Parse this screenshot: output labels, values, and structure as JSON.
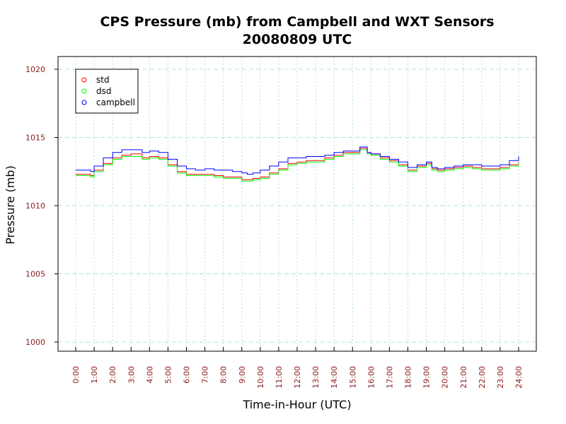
{
  "chart_data": {
    "type": "line",
    "title": "CPS Pressure (mb) from Campbell and WXT Sensors",
    "subtitle": "20080809  UTC",
    "xlabel": "Time-in-Hour (UTC)",
    "ylabel": "Pressure (mb)",
    "xlim": [
      0,
      24
    ],
    "ylim": [
      1000,
      1020
    ],
    "x_ticks": [
      "0:00",
      "1:00",
      "2:00",
      "3:00",
      "4:00",
      "5:00",
      "6:00",
      "7:00",
      "8:00",
      "9:00",
      "10:00",
      "11:00",
      "12:00",
      "13:00",
      "14:00",
      "15:00",
      "16:00",
      "17:00",
      "18:00",
      "19:00",
      "20:00",
      "21:00",
      "22:00",
      "23:00",
      "24:00"
    ],
    "y_ticks": [
      "1000",
      "1005",
      "1010",
      "1015",
      "1020"
    ],
    "grid": true,
    "legend_position": "top-left",
    "x": [
      0,
      0.5,
      0.8,
      1.0,
      1.5,
      2.0,
      2.5,
      3.0,
      3.3,
      3.6,
      4.0,
      4.5,
      5.0,
      5.5,
      6.0,
      6.5,
      7.0,
      7.5,
      8.0,
      8.5,
      9.0,
      9.3,
      9.6,
      10.0,
      10.5,
      11.0,
      11.5,
      12.0,
      12.5,
      13.0,
      13.5,
      14.0,
      14.5,
      15.0,
      15.4,
      15.8,
      16.0,
      16.5,
      17.0,
      17.5,
      18.0,
      18.5,
      19.0,
      19.3,
      19.6,
      20.0,
      20.5,
      21.0,
      21.5,
      22.0,
      22.5,
      23.0,
      23.5,
      24.0
    ],
    "series": [
      {
        "name": "std",
        "color": "#ff0000",
        "values": [
          1012.3,
          1012.3,
          1012.2,
          1012.6,
          1013.1,
          1013.5,
          1013.7,
          1013.8,
          1013.8,
          1013.5,
          1013.6,
          1013.5,
          1013.0,
          1012.5,
          1012.3,
          1012.3,
          1012.3,
          1012.2,
          1012.1,
          1012.1,
          1011.9,
          1011.9,
          1012.0,
          1012.1,
          1012.4,
          1012.7,
          1013.1,
          1013.2,
          1013.3,
          1013.3,
          1013.5,
          1013.7,
          1013.9,
          1013.9,
          1014.2,
          1013.9,
          1013.8,
          1013.5,
          1013.3,
          1013.0,
          1012.6,
          1012.9,
          1013.1,
          1012.7,
          1012.6,
          1012.7,
          1012.8,
          1012.9,
          1012.8,
          1012.7,
          1012.7,
          1012.8,
          1013.0,
          1013.2
        ]
      },
      {
        "name": "dsd",
        "color": "#00ff00",
        "values": [
          1012.2,
          1012.2,
          1012.1,
          1012.5,
          1013.0,
          1013.4,
          1013.6,
          1013.6,
          1013.6,
          1013.4,
          1013.5,
          1013.4,
          1012.9,
          1012.4,
          1012.2,
          1012.2,
          1012.2,
          1012.1,
          1012.0,
          1012.0,
          1011.8,
          1011.8,
          1011.9,
          1012.0,
          1012.3,
          1012.6,
          1013.0,
          1013.1,
          1013.2,
          1013.2,
          1013.4,
          1013.6,
          1013.8,
          1013.8,
          1014.1,
          1013.8,
          1013.7,
          1013.4,
          1013.2,
          1012.9,
          1012.5,
          1012.8,
          1013.0,
          1012.6,
          1012.5,
          1012.6,
          1012.7,
          1012.8,
          1012.7,
          1012.6,
          1012.6,
          1012.7,
          1012.9,
          1013.1
        ]
      },
      {
        "name": "campbell",
        "color": "#0000ff",
        "values": [
          1012.6,
          1012.6,
          1012.5,
          1012.9,
          1013.5,
          1013.9,
          1014.1,
          1014.1,
          1014.1,
          1013.9,
          1014.0,
          1013.9,
          1013.4,
          1012.9,
          1012.7,
          1012.6,
          1012.7,
          1012.6,
          1012.6,
          1012.5,
          1012.4,
          1012.3,
          1012.4,
          1012.6,
          1012.9,
          1013.2,
          1013.5,
          1013.5,
          1013.6,
          1013.6,
          1013.7,
          1013.9,
          1014.0,
          1014.0,
          1014.3,
          1013.9,
          1013.8,
          1013.6,
          1013.4,
          1013.2,
          1012.8,
          1013.0,
          1013.2,
          1012.8,
          1012.7,
          1012.8,
          1012.9,
          1013.0,
          1013.0,
          1012.9,
          1012.9,
          1013.0,
          1013.3,
          1013.6
        ]
      }
    ]
  }
}
